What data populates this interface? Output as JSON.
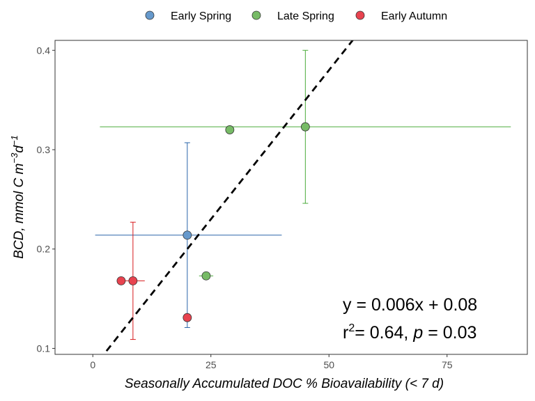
{
  "chart_data": {
    "type": "scatter",
    "title": "",
    "xlabel": "Seasonally Accumulated DOC % Bioavailability (< 7 d)",
    "ylabel": {
      "main": "BCD, mmol C m",
      "exp1": "−3",
      "mid": "d",
      "exp2": "−1"
    },
    "xlim": [
      -8,
      92
    ],
    "ylim": [
      0.094,
      0.41
    ],
    "x_ticks": [
      0,
      25,
      50,
      75
    ],
    "x_tick_labels": [
      "0",
      "25",
      "50",
      "75"
    ],
    "y_ticks": [
      0.1,
      0.2,
      0.3,
      0.4
    ],
    "y_tick_labels": [
      "0.1",
      "0.2",
      "0.3",
      "0.4"
    ],
    "grid": false,
    "legend_position": "top",
    "series": [
      {
        "name": "Early Spring",
        "color": "#6699cc",
        "line_color": "#2a65a8",
        "points": [
          {
            "x": 20,
            "y": 0.214,
            "xerr": [
              0.5,
              40
            ],
            "yerr": [
              0.121,
              0.307
            ]
          }
        ]
      },
      {
        "name": "Late Spring",
        "color": "#77bb66",
        "line_color": "#4aab3a",
        "points": [
          {
            "x": 45,
            "y": 0.323,
            "xerr": [
              1.5,
              88.5
            ],
            "yerr": [
              0.246,
              0.4
            ]
          },
          {
            "x": 29,
            "y": 0.32
          },
          {
            "x": 24,
            "y": 0.173,
            "xerr": [
              22.5,
              25.5
            ]
          }
        ]
      },
      {
        "name": "Early Autumn",
        "color": "#e8434f",
        "line_color": "#d7191c",
        "points": [
          {
            "x": 8.5,
            "y": 0.168,
            "xerr": [
              5.5,
              11
            ],
            "yerr": [
              0.109,
              0.227
            ]
          },
          {
            "x": 6,
            "y": 0.168
          },
          {
            "x": 20,
            "y": 0.131
          }
        ]
      }
    ],
    "fit_line": {
      "slope": 0.006,
      "intercept": 0.08,
      "style": "dashed",
      "color": "#000000"
    },
    "annotation": {
      "line1": "y = 0.006x + 0.08",
      "line2_prefix": "r",
      "line2_sup": "2",
      "line2_mid": "= 0.64, ",
      "line2_italic": "p",
      "line2_suffix": " = 0.03"
    }
  }
}
